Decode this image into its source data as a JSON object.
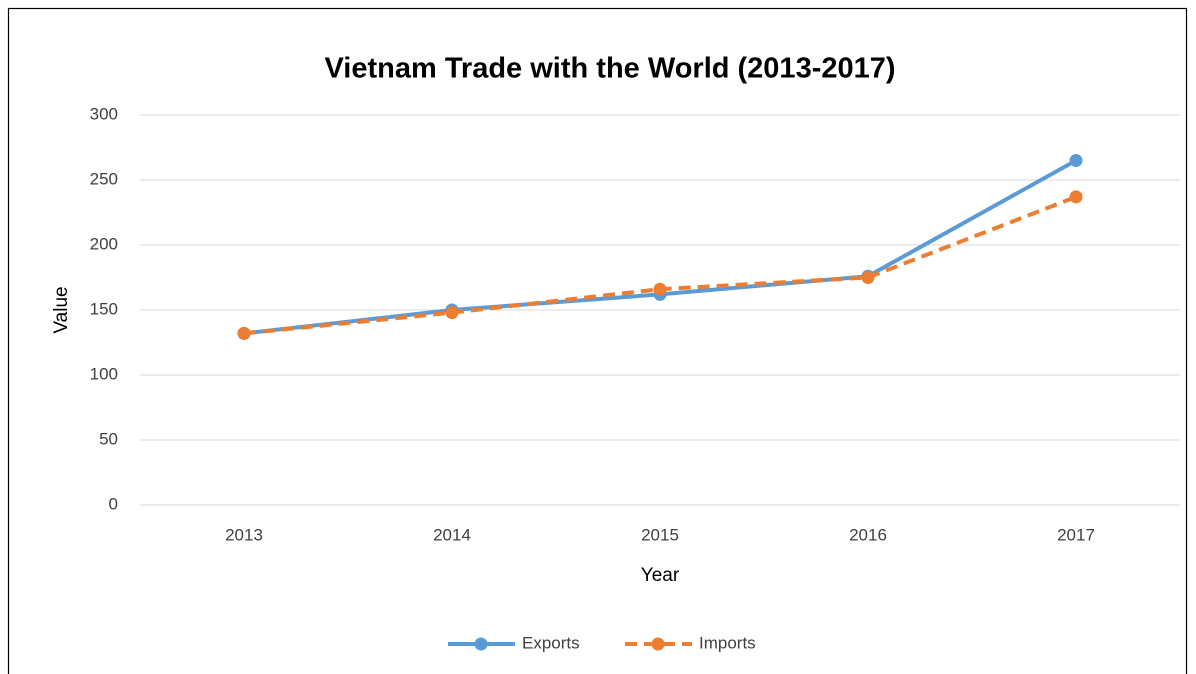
{
  "chart_data": {
    "type": "line",
    "title": "Vietnam Trade with the World (2013-2017)",
    "x_label": "Year",
    "y_label": "Value",
    "categories": [
      "2013",
      "2014",
      "2015",
      "2016",
      "2017"
    ],
    "series": [
      {
        "name": "Exports",
        "color": "#5b9bd5",
        "values": [
          132,
          150,
          162,
          176,
          265
        ]
      },
      {
        "name": "Imports",
        "color": "#ed7d31",
        "values": [
          132,
          148,
          166,
          175,
          237
        ]
      }
    ],
    "ylim": [
      0,
      300
    ],
    "yticks": [
      0,
      50,
      100,
      150,
      200,
      250,
      300
    ],
    "grid": true,
    "legend": "bottom"
  }
}
